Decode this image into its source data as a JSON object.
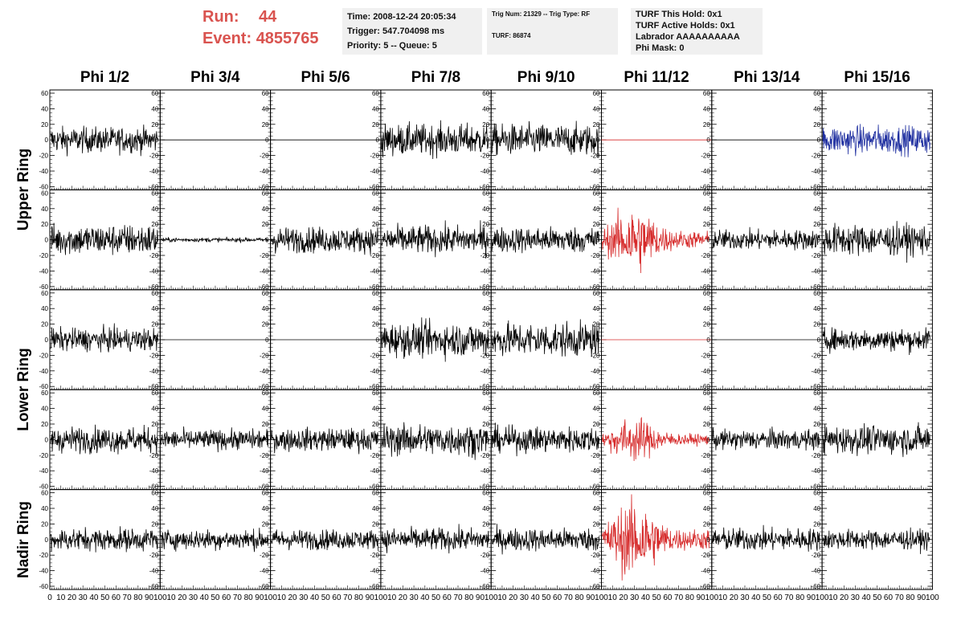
{
  "run": {
    "run_label": "Run:",
    "run_value": "44",
    "event_label": "Event:",
    "event_value": "4855765"
  },
  "info": {
    "time": "Time: 2008-12-24 20:05:34",
    "trigger": "Trigger: 547.704098 ms",
    "priority": "Priority: 5 -- Queue: 5",
    "trig": "Trig Num: 21329 -- Trig Type: RF",
    "turf": "TURF: 86874",
    "this_hold": "TURF This Hold: 0x1",
    "active_holds": "TURF Active Holds: 0x1",
    "labrador": "Labrador AAAAAAAAAA",
    "phi_mask": "Phi Mask: 0"
  },
  "columns": [
    "Phi 1/2",
    "Phi 3/4",
    "Phi 5/6",
    "Phi 7/8",
    "Phi 9/10",
    "Phi 11/12",
    "Phi 13/14",
    "Phi 15/16"
  ],
  "row_groups": [
    "Upper Ring",
    "Lower Ring",
    "Nadir Ring"
  ],
  "colors": {
    "normal": "#000000",
    "highlight": "#d62b2b",
    "blue": "#1f2fa0",
    "red_text": "#d9534f"
  },
  "chart_data": {
    "type": "line",
    "x_range": [
      0,
      100
    ],
    "y_range": [
      -60,
      60
    ],
    "y_ticks": [
      "60",
      "40",
      "20",
      "0",
      "-20",
      "-40",
      "-60"
    ],
    "x_tick_labels": [
      "0",
      "10",
      "20",
      "30",
      "40",
      "50",
      "60",
      "70",
      "80",
      "90",
      "100"
    ],
    "grid": false,
    "rows": [
      {
        "group": "Upper Ring",
        "panels": [
          {
            "mode": "noise",
            "amp": 18,
            "color": "normal"
          },
          {
            "mode": "flat",
            "amp": 0,
            "color": "normal"
          },
          {
            "mode": "flat",
            "amp": 0,
            "color": "normal"
          },
          {
            "mode": "noise",
            "amp": 22,
            "color": "normal"
          },
          {
            "mode": "noise",
            "amp": 22,
            "color": "normal"
          },
          {
            "mode": "flat",
            "amp": 0,
            "color": "highlight"
          },
          {
            "mode": "flat",
            "amp": 0,
            "color": "normal"
          },
          {
            "mode": "noise",
            "amp": 20,
            "color": "blue"
          }
        ]
      },
      {
        "group": "Upper Ring",
        "panels": [
          {
            "mode": "noise",
            "amp": 22,
            "color": "normal"
          },
          {
            "mode": "noise",
            "amp": 3,
            "color": "normal"
          },
          {
            "mode": "noise",
            "amp": 18,
            "color": "normal"
          },
          {
            "mode": "noise",
            "amp": 20,
            "color": "normal"
          },
          {
            "mode": "noise",
            "amp": 18,
            "color": "normal"
          },
          {
            "mode": "burst",
            "amp": 40,
            "color": "highlight"
          },
          {
            "mode": "noise",
            "amp": 14,
            "color": "normal"
          },
          {
            "mode": "noise",
            "amp": 22,
            "color": "normal"
          }
        ]
      },
      {
        "group": "Lower Ring",
        "panels": [
          {
            "mode": "noise",
            "amp": 16,
            "color": "normal"
          },
          {
            "mode": "flat",
            "amp": 0,
            "color": "normal"
          },
          {
            "mode": "flat",
            "amp": 0,
            "color": "normal"
          },
          {
            "mode": "noise",
            "amp": 24,
            "color": "normal"
          },
          {
            "mode": "noise",
            "amp": 24,
            "color": "normal"
          },
          {
            "mode": "flat",
            "amp": 0,
            "color": "highlight"
          },
          {
            "mode": "flat",
            "amp": 0,
            "color": "normal"
          },
          {
            "mode": "noise",
            "amp": 16,
            "color": "normal"
          }
        ]
      },
      {
        "group": "Lower Ring",
        "panels": [
          {
            "mode": "noise",
            "amp": 18,
            "color": "normal"
          },
          {
            "mode": "noise",
            "amp": 14,
            "color": "normal"
          },
          {
            "mode": "noise",
            "amp": 16,
            "color": "normal"
          },
          {
            "mode": "noise",
            "amp": 22,
            "color": "normal"
          },
          {
            "mode": "noise",
            "amp": 18,
            "color": "normal"
          },
          {
            "mode": "burst",
            "amp": 26,
            "color": "highlight"
          },
          {
            "mode": "noise",
            "amp": 14,
            "color": "normal"
          },
          {
            "mode": "noise",
            "amp": 20,
            "color": "normal"
          }
        ]
      },
      {
        "group": "Nadir Ring",
        "panels": [
          {
            "mode": "noise",
            "amp": 16,
            "color": "normal"
          },
          {
            "mode": "noise",
            "amp": 14,
            "color": "normal"
          },
          {
            "mode": "noise",
            "amp": 14,
            "color": "normal"
          },
          {
            "mode": "noise",
            "amp": 16,
            "color": "normal"
          },
          {
            "mode": "noise",
            "amp": 16,
            "color": "normal"
          },
          {
            "mode": "burst",
            "amp": 48,
            "color": "highlight"
          },
          {
            "mode": "noise",
            "amp": 16,
            "color": "normal"
          },
          {
            "mode": "noise",
            "amp": 14,
            "color": "normal"
          }
        ]
      }
    ]
  }
}
